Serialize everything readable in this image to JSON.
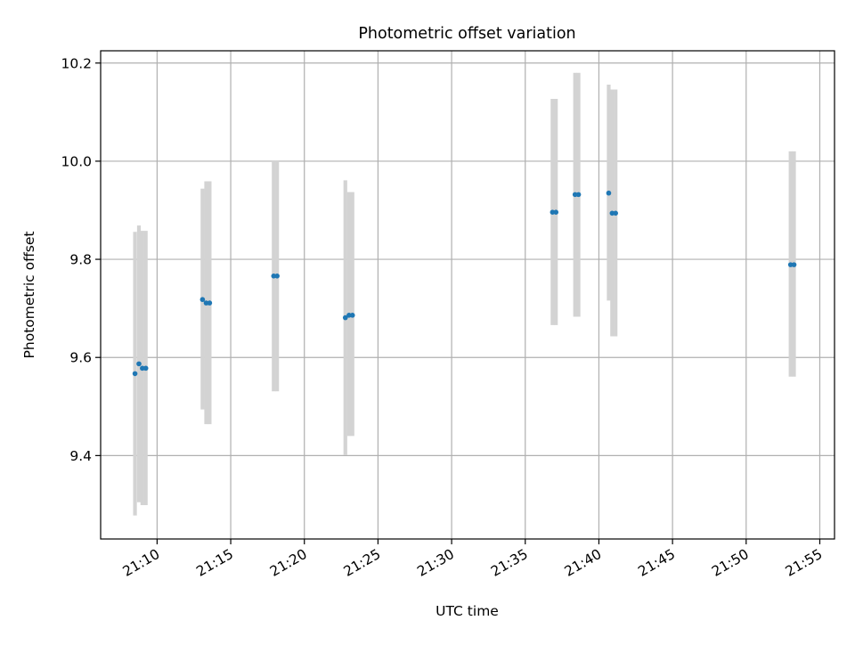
{
  "chart_data": {
    "type": "scatter",
    "title": "Photometric offset variation",
    "xlabel": "UTC time",
    "ylabel": "Photometric offset",
    "grid": true,
    "xlim": [
      "21:06:10",
      "21:56:00"
    ],
    "ylim": [
      9.23,
      10.225
    ],
    "x_ticks": [
      "21:10",
      "21:15",
      "21:20",
      "21:25",
      "21:30",
      "21:35",
      "21:40",
      "21:45",
      "21:50",
      "21:55"
    ],
    "y_ticks": [
      "9.4",
      "9.6",
      "9.8",
      "10.0",
      "10.2"
    ],
    "colors": {
      "points": "#1f77b4",
      "error_bars": "#d3d3d3",
      "grid": "#b0b0b0"
    },
    "series": [
      {
        "points": [
          {
            "x": "21:08:30",
            "y": 9.567,
            "y_low": 9.278,
            "y_high": 9.856
          },
          {
            "x": "21:08:46",
            "y": 9.587,
            "y_low": 9.305,
            "y_high": 9.869
          },
          {
            "x": "21:09:00",
            "y": 9.578,
            "y_low": 9.299,
            "y_high": 9.858
          },
          {
            "x": "21:09:14",
            "y": 9.578,
            "y_low": 9.299,
            "y_high": 9.858
          },
          {
            "x": "21:13:05",
            "y": 9.718,
            "y_low": 9.494,
            "y_high": 9.944
          },
          {
            "x": "21:13:20",
            "y": 9.711,
            "y_low": 9.464,
            "y_high": 9.959
          },
          {
            "x": "21:13:34",
            "y": 9.711,
            "y_low": 9.464,
            "y_high": 9.959
          },
          {
            "x": "21:17:55",
            "y": 9.766,
            "y_low": 9.531,
            "y_high": 10.0
          },
          {
            "x": "21:18:09",
            "y": 9.766,
            "y_low": 9.531,
            "y_high": 10.0
          },
          {
            "x": "21:22:47",
            "y": 9.681,
            "y_low": 9.401,
            "y_high": 9.961
          },
          {
            "x": "21:23:02",
            "y": 9.686,
            "y_low": 9.44,
            "y_high": 9.937
          },
          {
            "x": "21:23:16",
            "y": 9.686,
            "y_low": 9.44,
            "y_high": 9.937
          },
          {
            "x": "21:36:51",
            "y": 9.896,
            "y_low": 9.666,
            "y_high": 10.127
          },
          {
            "x": "21:37:05",
            "y": 9.896,
            "y_low": 9.666,
            "y_high": 10.127
          },
          {
            "x": "21:38:23",
            "y": 9.932,
            "y_low": 9.683,
            "y_high": 10.18
          },
          {
            "x": "21:38:37",
            "y": 9.932,
            "y_low": 9.683,
            "y_high": 10.18
          },
          {
            "x": "21:40:40",
            "y": 9.935,
            "y_low": 9.716,
            "y_high": 10.156
          },
          {
            "x": "21:40:54",
            "y": 9.894,
            "y_low": 9.643,
            "y_high": 10.146
          },
          {
            "x": "21:41:08",
            "y": 9.894,
            "y_low": 9.643,
            "y_high": 10.146
          },
          {
            "x": "21:53:01",
            "y": 9.789,
            "y_low": 9.561,
            "y_high": 10.02
          },
          {
            "x": "21:53:15",
            "y": 9.789,
            "y_low": 9.561,
            "y_high": 10.02
          }
        ]
      }
    ]
  }
}
